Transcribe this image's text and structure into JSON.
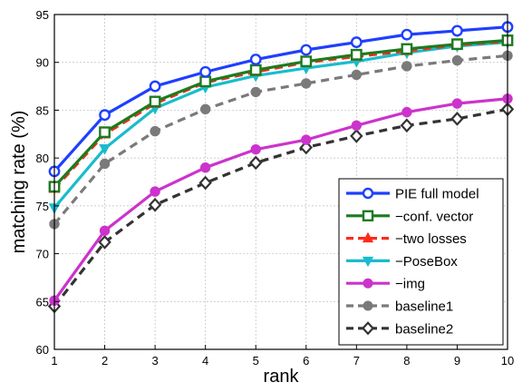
{
  "chart_data": {
    "type": "line",
    "title": "",
    "xlabel": "rank",
    "ylabel": "matching rate (%)",
    "x": [
      1,
      2,
      3,
      4,
      5,
      6,
      7,
      8,
      9,
      10
    ],
    "xlim": [
      1,
      10
    ],
    "ylim": [
      60,
      95
    ],
    "xticks": [
      1,
      2,
      3,
      4,
      5,
      6,
      7,
      8,
      9,
      10
    ],
    "yticks": [
      60,
      65,
      70,
      75,
      80,
      85,
      90,
      95
    ],
    "grid": true,
    "legend_position": "bottom-right",
    "series": [
      {
        "name": "PIE full model",
        "color": "#1f3fff",
        "marker": "circle-open",
        "dash": "solid",
        "values": [
          78.6,
          84.5,
          87.5,
          89.0,
          90.3,
          91.3,
          92.1,
          92.9,
          93.3,
          93.7
        ]
      },
      {
        "name": "−conf. vector",
        "color": "#1e7a1e",
        "marker": "square-open",
        "dash": "solid",
        "values": [
          77.0,
          82.7,
          85.9,
          88.0,
          89.2,
          90.1,
          90.8,
          91.4,
          91.9,
          92.3
        ]
      },
      {
        "name": "−two losses",
        "color": "#ff2a1a",
        "marker": "triangle-filled",
        "dash": "dashed",
        "values": [
          76.8,
          82.5,
          85.7,
          87.9,
          89.0,
          90.0,
          90.6,
          91.2,
          91.8,
          92.2
        ]
      },
      {
        "name": "−PoseBox",
        "color": "#19bccc",
        "marker": "triangle-down-filled",
        "dash": "solid",
        "values": [
          74.8,
          81.0,
          85.2,
          87.4,
          88.6,
          89.4,
          90.1,
          91.0,
          91.7,
          92.1
        ]
      },
      {
        "name": "−img",
        "color": "#cc33cc",
        "marker": "circle-filled",
        "dash": "solid",
        "values": [
          65.1,
          72.4,
          76.5,
          79.0,
          80.9,
          81.9,
          83.4,
          84.8,
          85.7,
          86.2
        ]
      },
      {
        "name": "baseline1",
        "color": "#7a7a7a",
        "marker": "circle-filled",
        "dash": "dashed",
        "values": [
          73.1,
          79.4,
          82.8,
          85.1,
          86.9,
          87.8,
          88.7,
          89.6,
          90.2,
          90.7
        ]
      },
      {
        "name": "baseline2",
        "color": "#333333",
        "marker": "diamond-open",
        "dash": "dashed",
        "values": [
          64.5,
          71.2,
          75.1,
          77.4,
          79.5,
          81.1,
          82.3,
          83.4,
          84.1,
          85.1
        ]
      }
    ]
  }
}
